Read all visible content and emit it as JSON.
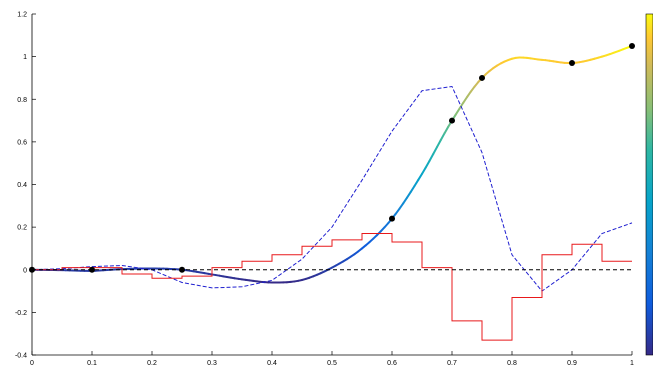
{
  "chart_data": {
    "type": "line",
    "title": "",
    "xlabel": "",
    "ylabel": "",
    "xlim": [
      0,
      1
    ],
    "ylim": [
      -0.4,
      1.2
    ],
    "grid": false,
    "x_ticks": [
      "0",
      "0.1",
      "0.2",
      "0.3",
      "0.4",
      "0.5",
      "0.6",
      "0.7",
      "0.8",
      "0.9",
      "1"
    ],
    "y_ticks": [
      "-0.4",
      "-0.2",
      "0",
      "0.2",
      "0.4",
      "0.6",
      "0.8",
      "1",
      "1.2"
    ],
    "colorbar": {
      "colormap": "parula",
      "position": "right"
    },
    "series": [
      {
        "style": "solid-colormap",
        "x": [
          0,
          0.05,
          0.1,
          0.15,
          0.2,
          0.25,
          0.3,
          0.35,
          0.4,
          0.45,
          0.5,
          0.55,
          0.6,
          0.65,
          0.7,
          0.75,
          0.8,
          0.85,
          0.9,
          0.95,
          1.0
        ],
        "y": [
          0,
          -0.002,
          -0.005,
          0.003,
          0.006,
          0,
          -0.022,
          -0.045,
          -0.06,
          -0.048,
          0.01,
          0.1,
          0.24,
          0.45,
          0.7,
          0.9,
          0.99,
          0.985,
          0.97,
          1.0,
          1.05
        ]
      },
      {
        "style": "markers",
        "color": "#000000",
        "x": [
          0,
          0.1,
          0.25,
          0.6,
          0.7,
          0.75,
          0.9,
          1.0
        ],
        "y": [
          0,
          0,
          0,
          0.24,
          0.7,
          0.9,
          0.97,
          1.05
        ]
      },
      {
        "style": "dashed",
        "color": "#1f1fd0",
        "x": [
          0,
          0.05,
          0.1,
          0.15,
          0.2,
          0.25,
          0.3,
          0.35,
          0.4,
          0.45,
          0.5,
          0.55,
          0.6,
          0.65,
          0.7,
          0.75,
          0.8,
          0.85,
          0.9,
          0.95,
          1.0
        ],
        "y": [
          0,
          0.005,
          0.015,
          0.02,
          0.0,
          -0.06,
          -0.085,
          -0.08,
          -0.05,
          0.05,
          0.2,
          0.42,
          0.65,
          0.84,
          0.86,
          0.55,
          0.07,
          -0.1,
          0.0,
          0.17,
          0.22
        ]
      },
      {
        "style": "step",
        "color": "#e8191b",
        "x": [
          0,
          0.05,
          0.1,
          0.15,
          0.2,
          0.25,
          0.3,
          0.35,
          0.4,
          0.45,
          0.5,
          0.55,
          0.6,
          0.65,
          0.7,
          0.75,
          0.8,
          0.85,
          0.9,
          0.95,
          1.0
        ],
        "y": [
          0,
          0.01,
          0.01,
          -0.02,
          -0.04,
          -0.03,
          0.01,
          0.04,
          0.07,
          0.11,
          0.14,
          0.17,
          0.13,
          0.01,
          -0.24,
          -0.33,
          -0.13,
          0.07,
          0.12,
          0.04,
          0.04
        ]
      },
      {
        "style": "dashed-reference",
        "color": "#000000",
        "x": [
          0,
          1
        ],
        "y": [
          0,
          0
        ]
      }
    ]
  }
}
